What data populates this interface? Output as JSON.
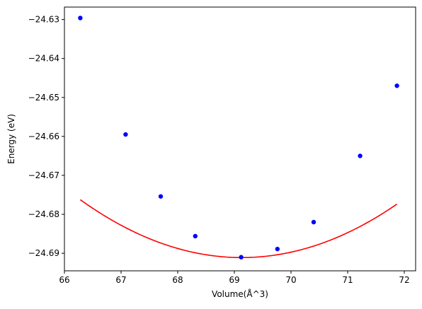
{
  "chart_data": {
    "type": "line",
    "title": "",
    "xlabel": "Volume(Å^3)",
    "ylabel": "Energy (eV)",
    "xlim": [
      66.0,
      72.2
    ],
    "ylim": [
      -24.6945,
      -24.6268
    ],
    "x_ticks": [
      66,
      67,
      68,
      69,
      70,
      71,
      72
    ],
    "x_tick_labels": [
      "66",
      "67",
      "68",
      "69",
      "70",
      "71",
      "72"
    ],
    "y_ticks": [
      -24.63,
      -24.64,
      -24.65,
      -24.66,
      -24.67,
      -24.68,
      -24.69
    ],
    "y_tick_labels": [
      "−24.63",
      "−24.64",
      "−24.65",
      "−24.66",
      "−24.67",
      "−24.68",
      "−24.69"
    ],
    "grid": false,
    "series": [
      {
        "kind": "points",
        "color": "#0000ff",
        "x": [
          66.28,
          67.08,
          67.7,
          68.31,
          69.12,
          69.76,
          70.4,
          71.22,
          71.87
        ],
        "y": [
          -24.6296,
          -24.6595,
          -24.6754,
          -24.6856,
          -24.691,
          -24.6889,
          -24.682,
          -24.665,
          -24.647
        ]
      },
      {
        "kind": "fit",
        "color": "#ff0000",
        "x_range": [
          66.28,
          71.87
        ],
        "fit": {
          "a": 0.001828,
          "x0": 69.13,
          "y0": -24.6911
        }
      }
    ]
  }
}
